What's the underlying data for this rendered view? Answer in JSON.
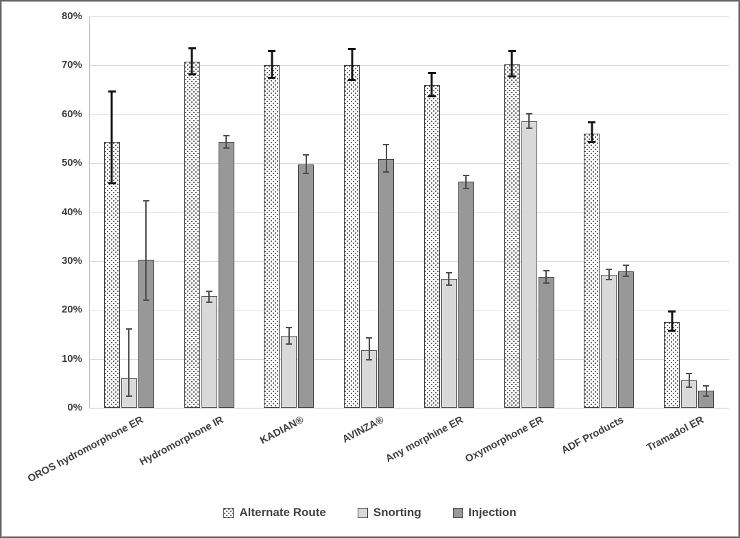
{
  "colors": {
    "text": "#3f3f3f",
    "grid": "#dadada",
    "axis": "#bfbfbf",
    "snorting_fill": "#d9d9d9",
    "injection_fill": "#989898",
    "bar_border": "#3f3f3f",
    "error_alternate": "#141414",
    "error_other": "#4c4c4c",
    "frame_border": "#636363"
  },
  "chart_data": {
    "type": "bar",
    "title": "",
    "xlabel": "",
    "ylabel": "",
    "grid": true,
    "legend_position": "bottom",
    "y_axis": {
      "min": 0,
      "max": 80,
      "step": 10,
      "tick_labels": [
        "0%",
        "10%",
        "20%",
        "30%",
        "40%",
        "50%",
        "60%",
        "70%",
        "80%"
      ]
    },
    "categories": [
      "OROS hydromorphone ER",
      "Hydromorphone IR",
      "KADIAN®",
      "AVINZA®",
      "Any morphine ER",
      "Oxymorphone ER",
      "ADF Products",
      "Tramadol ER"
    ],
    "series": [
      {
        "name": "Alternate Route",
        "key": "alternate",
        "pattern": "white-dotted",
        "values": [
          54.3,
          70.7,
          70.0,
          70.0,
          66.0,
          70.2,
          56.1,
          17.5
        ],
        "error_low": [
          45.7,
          68.0,
          67.2,
          66.8,
          63.5,
          67.5,
          54.1,
          15.5
        ],
        "error_high": [
          64.8,
          73.7,
          73.1,
          73.5,
          68.6,
          73.1,
          58.5,
          19.9
        ]
      },
      {
        "name": "Snorting",
        "key": "snorting",
        "pattern": "light-gray",
        "values": [
          6.0,
          22.8,
          14.7,
          11.7,
          26.3,
          58.5,
          27.2,
          5.6
        ],
        "error_low": [
          2.3,
          21.5,
          12.9,
          9.7,
          25.0,
          57.0,
          26.1,
          4.0
        ],
        "error_high": [
          16.3,
          24.0,
          16.5,
          14.4,
          27.8,
          60.2,
          28.4,
          7.2
        ]
      },
      {
        "name": "Injection",
        "key": "injection",
        "pattern": "dark-gray",
        "values": [
          30.3,
          54.4,
          49.8,
          50.9,
          46.2,
          26.7,
          27.9,
          3.5
        ],
        "error_low": [
          21.8,
          53.0,
          47.8,
          48.1,
          44.7,
          25.3,
          26.7,
          2.3
        ],
        "error_high": [
          42.5,
          55.8,
          51.9,
          54.0,
          47.6,
          28.2,
          29.3,
          4.6
        ]
      }
    ]
  }
}
